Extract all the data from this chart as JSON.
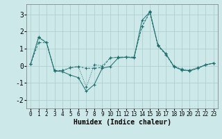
{
  "xlabel": "Humidex (Indice chaleur)",
  "background_color": "#cce8e8",
  "grid_color": "#aacccc",
  "line_color": "#1a6e6e",
  "xlim": [
    -0.5,
    23.5
  ],
  "ylim": [
    -2.5,
    3.6
  ],
  "yticks": [
    -2,
    -1,
    0,
    1,
    2,
    3
  ],
  "xticks": [
    0,
    1,
    2,
    3,
    4,
    5,
    6,
    7,
    8,
    9,
    10,
    11,
    12,
    13,
    14,
    15,
    16,
    17,
    18,
    19,
    20,
    21,
    22,
    23
  ],
  "line1_x": [
    0,
    1,
    2,
    3,
    4,
    5,
    6,
    7,
    8,
    9,
    10,
    11,
    12,
    13,
    14,
    15,
    16,
    17,
    18,
    19,
    20,
    21,
    22,
    23
  ],
  "line1_y": [
    0.1,
    1.7,
    1.35,
    -0.28,
    -0.28,
    -0.12,
    -0.05,
    -1.25,
    0.05,
    0.0,
    0.45,
    0.5,
    0.5,
    0.5,
    2.3,
    3.2,
    1.2,
    0.7,
    0.0,
    -0.2,
    -0.25,
    -0.1,
    0.05,
    0.15
  ],
  "line2_x": [
    0,
    1,
    2,
    3,
    4,
    5,
    6,
    7,
    8,
    9,
    10,
    11,
    12,
    13,
    14,
    15,
    16,
    17,
    18,
    19,
    20,
    21,
    22,
    23
  ],
  "line2_y": [
    0.1,
    1.65,
    1.35,
    -0.3,
    -0.35,
    -0.55,
    -0.7,
    -1.5,
    -1.1,
    -0.15,
    -0.05,
    0.45,
    0.5,
    0.45,
    2.65,
    3.15,
    1.2,
    0.7,
    -0.05,
    -0.25,
    -0.3,
    -0.15,
    0.05,
    0.15
  ],
  "line3_x": [
    0,
    1,
    2,
    3,
    4,
    5,
    6,
    7,
    8,
    9,
    10,
    11,
    12,
    13,
    14,
    15,
    16,
    17,
    18,
    19,
    20,
    21,
    22,
    23
  ],
  "line3_y": [
    0.1,
    1.35,
    1.35,
    -0.3,
    -0.28,
    -0.12,
    -0.05,
    -0.15,
    -0.15,
    -0.1,
    0.45,
    0.5,
    0.5,
    0.5,
    2.3,
    3.1,
    1.15,
    0.65,
    -0.05,
    -0.25,
    -0.3,
    -0.15,
    0.05,
    0.15
  ]
}
